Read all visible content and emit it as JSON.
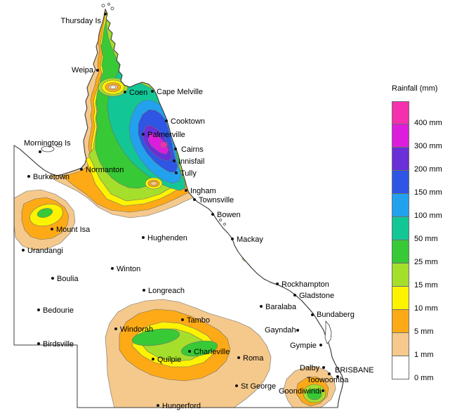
{
  "legend": {
    "title": "Rainfall (mm)",
    "entries": [
      {
        "level": "400",
        "label": "400 mm",
        "color": "#f52fae"
      },
      {
        "level": "300",
        "label": "300 mm",
        "color": "#dc1ddc"
      },
      {
        "level": "200",
        "label": "200 mm",
        "color": "#6a2fd6"
      },
      {
        "level": "150",
        "label": "150 mm",
        "color": "#2e55e3"
      },
      {
        "level": "100",
        "label": "100 mm",
        "color": "#22a2ee"
      },
      {
        "level": "50",
        "label": "50 mm",
        "color": "#12c795"
      },
      {
        "level": "25",
        "label": "25 mm",
        "color": "#38c936"
      },
      {
        "level": "15",
        "label": "15 mm",
        "color": "#a6de2c"
      },
      {
        "level": "10",
        "label": "10 mm",
        "color": "#fdf300"
      },
      {
        "level": "5",
        "label": "5 mm",
        "color": "#feaa16"
      },
      {
        "level": "1",
        "label": "1 mm",
        "color": "#f5c98c"
      },
      {
        "level": "0",
        "label": "0 mm",
        "color": "#ffffff"
      }
    ]
  },
  "map": {
    "towns": [
      {
        "name": "Thursday Is",
        "dot": [
          150,
          20
        ],
        "label": [
          144,
          33
        ],
        "anchor": "end"
      },
      {
        "name": "Weipa",
        "dot": [
          139,
          100
        ],
        "label": [
          133,
          103
        ],
        "anchor": "end"
      },
      {
        "name": "Coen",
        "dot": [
          178,
          131
        ],
        "label": [
          184,
          135
        ],
        "anchor": "start"
      },
      {
        "name": "Cape Melville",
        "dot": [
          217,
          130
        ],
        "label": [
          223,
          134
        ],
        "anchor": "start"
      },
      {
        "name": "Cooktown",
        "dot": [
          237,
          172
        ],
        "label": [
          243,
          176
        ],
        "anchor": "start"
      },
      {
        "name": "Palmerville",
        "dot": [
          204,
          191
        ],
        "label": [
          210,
          195
        ],
        "anchor": "start"
      },
      {
        "name": "Cairns",
        "dot": [
          250,
          212
        ],
        "label": [
          258,
          216
        ],
        "anchor": "start"
      },
      {
        "name": "Innisfail",
        "dot": [
          248,
          229
        ],
        "label": [
          254,
          233
        ],
        "anchor": "start"
      },
      {
        "name": "Tully",
        "dot": [
          251,
          246
        ],
        "label": [
          257,
          250
        ],
        "anchor": "start"
      },
      {
        "name": "Ingham",
        "dot": [
          265,
          271
        ],
        "label": [
          271,
          275
        ],
        "anchor": "start"
      },
      {
        "name": "Townsville",
        "dot": [
          277,
          284
        ],
        "label": [
          283,
          288
        ],
        "anchor": "start"
      },
      {
        "name": "Bowen",
        "dot": [
          303,
          305
        ],
        "label": [
          309,
          309
        ],
        "anchor": "start"
      },
      {
        "name": "Mackay",
        "dot": [
          331,
          340
        ],
        "label": [
          337,
          344
        ],
        "anchor": "start"
      },
      {
        "name": "Normanton",
        "dot": [
          116,
          241
        ],
        "label": [
          122,
          245
        ],
        "anchor": "start"
      },
      {
        "name": "Burketown",
        "dot": [
          41,
          251
        ],
        "label": [
          47,
          255
        ],
        "anchor": "start"
      },
      {
        "name": "Mornington Is",
        "dot": [
          57,
          216
        ],
        "label": [
          34,
          207
        ],
        "anchor": "start"
      },
      {
        "name": "Mount Isa",
        "dot": [
          74,
          326
        ],
        "label": [
          80,
          330
        ],
        "anchor": "start"
      },
      {
        "name": "Urandangi",
        "dot": [
          33,
          356
        ],
        "label": [
          39,
          360
        ],
        "anchor": "start"
      },
      {
        "name": "Boulia",
        "dot": [
          75,
          396
        ],
        "label": [
          81,
          400
        ],
        "anchor": "start"
      },
      {
        "name": "Bedourie",
        "dot": [
          55,
          441
        ],
        "label": [
          61,
          445
        ],
        "anchor": "start"
      },
      {
        "name": "Birdsville",
        "dot": [
          55,
          489
        ],
        "label": [
          61,
          493
        ],
        "anchor": "start"
      },
      {
        "name": "Winton",
        "dot": [
          160,
          382
        ],
        "label": [
          166,
          386
        ],
        "anchor": "start"
      },
      {
        "name": "Hughenden",
        "dot": [
          204,
          338
        ],
        "label": [
          210,
          342
        ],
        "anchor": "start"
      },
      {
        "name": "Longreach",
        "dot": [
          205,
          413
        ],
        "label": [
          211,
          417
        ],
        "anchor": "start"
      },
      {
        "name": "Windorah",
        "dot": [
          165,
          468
        ],
        "label": [
          171,
          472
        ],
        "anchor": "start"
      },
      {
        "name": "Quilpie",
        "dot": [
          218,
          511
        ],
        "label": [
          224,
          515
        ],
        "anchor": "start"
      },
      {
        "name": "Charleville",
        "dot": [
          270,
          500
        ],
        "label": [
          276,
          504
        ],
        "anchor": "start"
      },
      {
        "name": "Tambo",
        "dot": [
          260,
          455
        ],
        "label": [
          266,
          459
        ],
        "anchor": "start"
      },
      {
        "name": "Roma",
        "dot": [
          340,
          509
        ],
        "label": [
          346,
          513
        ],
        "anchor": "start"
      },
      {
        "name": "St George",
        "dot": [
          337,
          549
        ],
        "label": [
          343,
          553
        ],
        "anchor": "start"
      },
      {
        "name": "Hungerford",
        "dot": [
          225,
          577
        ],
        "label": [
          231,
          581
        ],
        "anchor": "start"
      },
      {
        "name": "Rockhampton",
        "dot": [
          395,
          404
        ],
        "label": [
          401,
          408
        ],
        "anchor": "start"
      },
      {
        "name": "Gladstone",
        "dot": [
          420,
          420
        ],
        "label": [
          426,
          424
        ],
        "anchor": "start"
      },
      {
        "name": "Baralaba",
        "dot": [
          372,
          436
        ],
        "label": [
          378,
          440
        ],
        "anchor": "start"
      },
      {
        "name": "Bundaberg",
        "dot": [
          445,
          448
        ],
        "label": [
          451,
          451
        ],
        "anchor": "start"
      },
      {
        "name": "Gayndah",
        "dot": [
          424,
          470
        ],
        "label": [
          377,
          473
        ],
        "anchor": "start"
      },
      {
        "name": "Gympie",
        "dot": [
          457,
          491
        ],
        "label": [
          413,
          495
        ],
        "anchor": "start"
      },
      {
        "name": "Dalby",
        "dot": [
          461,
          523
        ],
        "label": [
          427,
          527
        ],
        "anchor": "start"
      },
      {
        "name": "Toowoomba",
        "dot": [
          469,
          532
        ],
        "label": [
          437,
          544
        ],
        "anchor": "start"
      },
      {
        "name": "BRISBANE",
        "dot": [
          481,
          536
        ],
        "label": [
          477,
          530
        ],
        "anchor": "start"
      },
      {
        "name": "Goondiwindi",
        "dot": [
          460,
          556
        ],
        "label": [
          397,
          560
        ],
        "anchor": "start"
      }
    ]
  }
}
